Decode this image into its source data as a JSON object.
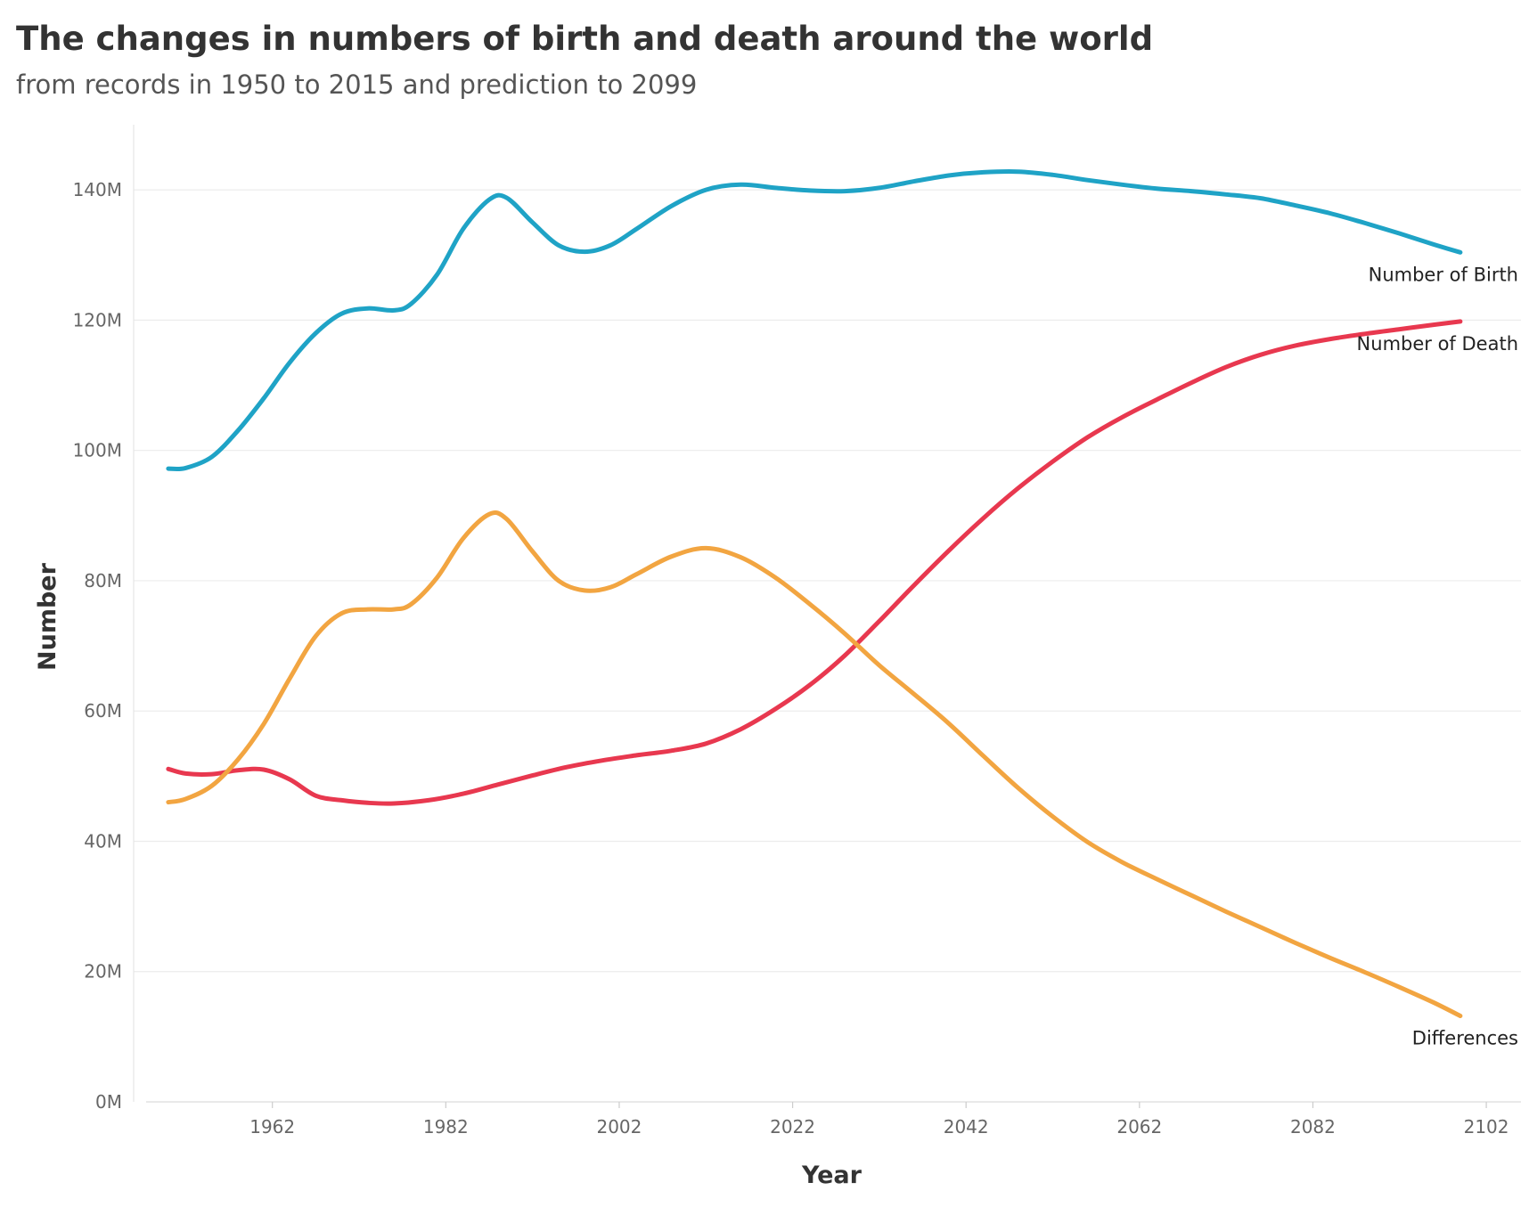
{
  "chart_data": {
    "type": "line",
    "title": "The changes in numbers of birth and death around the world",
    "subtitle": "from records in 1950 to 2015 and prediction to 2099",
    "xlabel": "Year",
    "ylabel": "Number",
    "xlim": [
      1946,
      2106
    ],
    "ylim": [
      0,
      150000000
    ],
    "x_ticks": [
      1962,
      1982,
      2002,
      2022,
      2042,
      2062,
      2082,
      2102
    ],
    "y_ticks": [
      0,
      20000000,
      40000000,
      60000000,
      80000000,
      100000000,
      120000000,
      140000000
    ],
    "y_tick_labels": [
      "0M",
      "20M",
      "40M",
      "60M",
      "80M",
      "100M",
      "120M",
      "140M"
    ],
    "grid": "horizontal",
    "legend": "inline labels at line ends",
    "series": [
      {
        "name": "Number of Birth",
        "color": "#1fa3c6",
        "points": [
          [
            1950,
            97.2
          ],
          [
            1952,
            97.3
          ],
          [
            1955,
            99.0
          ],
          [
            1958,
            103.0
          ],
          [
            1961,
            108.0
          ],
          [
            1964,
            113.5
          ],
          [
            1967,
            118.0
          ],
          [
            1970,
            121.0
          ],
          [
            1973,
            121.8
          ],
          [
            1976,
            121.5
          ],
          [
            1978,
            122.5
          ],
          [
            1981,
            127.0
          ],
          [
            1984,
            134.0
          ],
          [
            1987,
            138.5
          ],
          [
            1989,
            138.8
          ],
          [
            1992,
            135.0
          ],
          [
            1995,
            131.5
          ],
          [
            1998,
            130.5
          ],
          [
            2001,
            131.5
          ],
          [
            2004,
            134.0
          ],
          [
            2008,
            137.5
          ],
          [
            2012,
            140.0
          ],
          [
            2016,
            140.8
          ],
          [
            2020,
            140.3
          ],
          [
            2024,
            139.9
          ],
          [
            2028,
            139.8
          ],
          [
            2032,
            140.3
          ],
          [
            2036,
            141.3
          ],
          [
            2040,
            142.2
          ],
          [
            2044,
            142.7
          ],
          [
            2048,
            142.8
          ],
          [
            2052,
            142.3
          ],
          [
            2056,
            141.5
          ],
          [
            2060,
            140.8
          ],
          [
            2064,
            140.2
          ],
          [
            2068,
            139.8
          ],
          [
            2072,
            139.3
          ],
          [
            2076,
            138.7
          ],
          [
            2080,
            137.6
          ],
          [
            2084,
            136.4
          ],
          [
            2088,
            134.9
          ],
          [
            2092,
            133.3
          ],
          [
            2096,
            131.6
          ],
          [
            2099,
            130.4
          ]
        ]
      },
      {
        "name": "Number of Death",
        "color": "#e8384f",
        "points": [
          [
            1950,
            51.1
          ],
          [
            1952,
            50.4
          ],
          [
            1955,
            50.3
          ],
          [
            1958,
            50.9
          ],
          [
            1961,
            51.0
          ],
          [
            1964,
            49.5
          ],
          [
            1967,
            47.0
          ],
          [
            1970,
            46.3
          ],
          [
            1973,
            45.9
          ],
          [
            1976,
            45.8
          ],
          [
            1980,
            46.3
          ],
          [
            1984,
            47.3
          ],
          [
            1988,
            48.7
          ],
          [
            1992,
            50.1
          ],
          [
            1996,
            51.4
          ],
          [
            2000,
            52.4
          ],
          [
            2004,
            53.2
          ],
          [
            2008,
            53.9
          ],
          [
            2012,
            55.0
          ],
          [
            2016,
            57.2
          ],
          [
            2020,
            60.3
          ],
          [
            2024,
            64.0
          ],
          [
            2028,
            68.5
          ],
          [
            2032,
            73.8
          ],
          [
            2036,
            79.3
          ],
          [
            2040,
            84.6
          ],
          [
            2044,
            89.6
          ],
          [
            2048,
            94.2
          ],
          [
            2052,
            98.3
          ],
          [
            2056,
            102.0
          ],
          [
            2060,
            105.1
          ],
          [
            2064,
            107.8
          ],
          [
            2068,
            110.4
          ],
          [
            2072,
            112.8
          ],
          [
            2076,
            114.7
          ],
          [
            2080,
            116.1
          ],
          [
            2084,
            117.1
          ],
          [
            2088,
            117.9
          ],
          [
            2092,
            118.6
          ],
          [
            2096,
            119.3
          ],
          [
            2099,
            119.8
          ]
        ]
      },
      {
        "name": "Differences",
        "color": "#f2a541",
        "points": [
          [
            1950,
            46.0
          ],
          [
            1952,
            46.5
          ],
          [
            1955,
            48.5
          ],
          [
            1958,
            52.5
          ],
          [
            1961,
            58.0
          ],
          [
            1964,
            65.0
          ],
          [
            1967,
            71.5
          ],
          [
            1970,
            75.0
          ],
          [
            1973,
            75.6
          ],
          [
            1976,
            75.6
          ],
          [
            1978,
            76.4
          ],
          [
            1981,
            80.5
          ],
          [
            1984,
            86.5
          ],
          [
            1987,
            90.2
          ],
          [
            1989,
            89.5
          ],
          [
            1992,
            84.5
          ],
          [
            1995,
            80.0
          ],
          [
            1998,
            78.5
          ],
          [
            2001,
            79.0
          ],
          [
            2004,
            81.0
          ],
          [
            2008,
            83.7
          ],
          [
            2012,
            85.0
          ],
          [
            2016,
            83.6
          ],
          [
            2020,
            80.5
          ],
          [
            2024,
            76.4
          ],
          [
            2028,
            71.9
          ],
          [
            2032,
            67.0
          ],
          [
            2036,
            62.6
          ],
          [
            2040,
            58.1
          ],
          [
            2044,
            53.1
          ],
          [
            2048,
            48.2
          ],
          [
            2052,
            43.8
          ],
          [
            2056,
            39.9
          ],
          [
            2060,
            36.8
          ],
          [
            2064,
            34.2
          ],
          [
            2068,
            31.7
          ],
          [
            2072,
            29.2
          ],
          [
            2076,
            26.8
          ],
          [
            2080,
            24.4
          ],
          [
            2084,
            22.1
          ],
          [
            2088,
            19.9
          ],
          [
            2092,
            17.6
          ],
          [
            2096,
            15.2
          ],
          [
            2099,
            13.2
          ]
        ]
      }
    ]
  }
}
